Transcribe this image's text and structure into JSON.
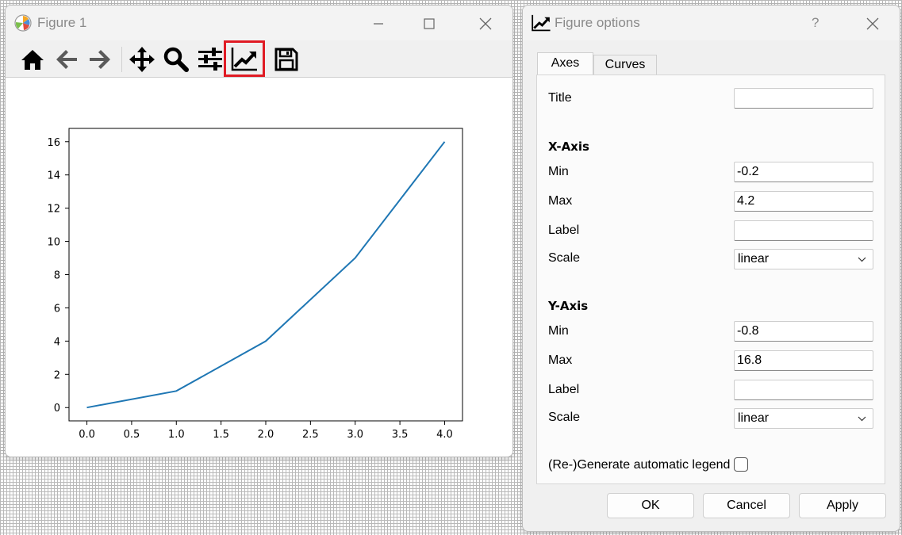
{
  "figure_window": {
    "title": "Figure 1",
    "toolbar": [
      "home-icon",
      "back-arrow-icon",
      "forward-arrow-icon",
      "pan-icon",
      "zoom-icon",
      "subplots-config-icon",
      "edit-axis-icon",
      "save-icon"
    ],
    "highlight_color": "#e01b24"
  },
  "chart_data": {
    "type": "line",
    "x": [
      0,
      1,
      2,
      3,
      4
    ],
    "series": [
      {
        "values": [
          0,
          1,
          4,
          9,
          16
        ],
        "color": "#1f77b4"
      }
    ],
    "xlim": [
      -0.2,
      4.2
    ],
    "ylim": [
      -0.8,
      16.8
    ],
    "xticks": [
      "0.0",
      "0.5",
      "1.0",
      "1.5",
      "2.0",
      "2.5",
      "3.0",
      "3.5",
      "4.0"
    ],
    "yticks": [
      "0",
      "2",
      "4",
      "6",
      "8",
      "10",
      "12",
      "14",
      "16"
    ],
    "title": "",
    "xlabel": "",
    "ylabel": "",
    "grid": false
  },
  "options_dialog": {
    "title": "Figure options",
    "help": "?",
    "tabs": {
      "axes": "Axes",
      "curves": "Curves"
    },
    "title_label": "Title",
    "title_value": "",
    "xaxis": {
      "heading": "X-Axis",
      "min_label": "Min",
      "min": "-0.2",
      "max_label": "Max",
      "max": "4.2",
      "label_label": "Label",
      "label": "",
      "scale_label": "Scale",
      "scale": "linear"
    },
    "yaxis": {
      "heading": "Y-Axis",
      "min_label": "Min",
      "min": "-0.8",
      "max_label": "Max",
      "max": "16.8",
      "label_label": "Label",
      "label": "",
      "scale_label": "Scale",
      "scale": "linear"
    },
    "legend_label": "(Re-)Generate automatic legend",
    "buttons": {
      "ok": "OK",
      "cancel": "Cancel",
      "apply": "Apply"
    }
  }
}
